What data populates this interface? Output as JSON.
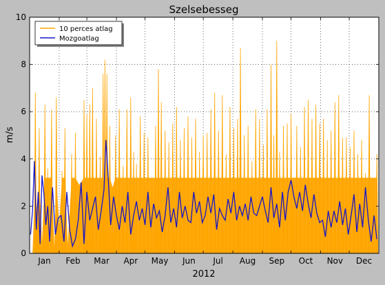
{
  "chart_data": {
    "type": "line",
    "title": "Szelsebesseg",
    "xlabel": "2012",
    "ylabel": "m/s",
    "ylim": [
      0,
      10
    ],
    "y_ticks": [
      0,
      2,
      4,
      6,
      8,
      10
    ],
    "x_ticks": [
      "Jan",
      "Feb",
      "Mar",
      "Apr",
      "May",
      "Jun",
      "Jul",
      "Aug",
      "Sep",
      "Oct",
      "Nov",
      "Dec"
    ],
    "x_range_days": [
      0,
      366
    ],
    "grid": true,
    "legend_position": "top-left",
    "series": [
      {
        "name": "10 perces atlag",
        "color": "#ffa500",
        "x": [
          3,
          6,
          8,
          10,
          13,
          16,
          19,
          23,
          26,
          28,
          31,
          34,
          37,
          40,
          44,
          48,
          52,
          57,
          60,
          63,
          66,
          70,
          74,
          77,
          79,
          81,
          84,
          87,
          90,
          94,
          98,
          102,
          106,
          109,
          112,
          116,
          120,
          124,
          128,
          132,
          135,
          138,
          142,
          146,
          150,
          154,
          158,
          162,
          166,
          170,
          174,
          178,
          182,
          186,
          190,
          194,
          198,
          202,
          206,
          210,
          214,
          218,
          221,
          225,
          229,
          233,
          237,
          241,
          245,
          249,
          253,
          256,
          259,
          262,
          266,
          270,
          274,
          277,
          280,
          284,
          288,
          292,
          296,
          300,
          304,
          308,
          312,
          316,
          320,
          324,
          328,
          332,
          336,
          340,
          344,
          348,
          352,
          356,
          360,
          364
        ],
        "values": [
          0,
          6.8,
          1.5,
          5.3,
          0.5,
          6.3,
          3.6,
          6.1,
          0.3,
          6.6,
          1.2,
          3.5,
          5.3,
          0.4,
          4.2,
          5.1,
          2.9,
          6.5,
          5.9,
          6.3,
          7.0,
          5.7,
          4.1,
          7.6,
          8.2,
          7.6,
          5.4,
          2.8,
          5.0,
          6.1,
          3.7,
          6.1,
          6.6,
          4.3,
          3.8,
          5.8,
          5.1,
          4.9,
          3.2,
          5.4,
          7.8,
          6.4,
          5.2,
          4.7,
          5.5,
          6.2,
          4.8,
          5.3,
          5.8,
          4.9,
          5.7,
          4.3,
          5.0,
          5.1,
          6.1,
          6.8,
          5.2,
          6.7,
          4.2,
          6.2,
          5.3,
          5.7,
          8.7,
          5.0,
          5.4,
          3.9,
          6.1,
          5.7,
          4.6,
          6.1,
          8.0,
          5.0,
          9.0,
          4.3,
          5.4,
          5.5,
          5.9,
          3.2,
          5.4,
          4.5,
          6.2,
          6.5,
          5.7,
          6.3,
          5.5,
          5.7,
          4.8,
          5.2,
          6.4,
          6.7,
          4.9,
          4.9,
          4.5,
          5.2,
          4.2,
          4.8,
          3.4,
          6.7,
          3.2,
          4.2
        ]
      },
      {
        "name": "Mozgoatlag",
        "color": "#1515c8",
        "x": [
          1,
          3,
          5,
          7,
          9,
          11,
          13,
          15,
          17,
          19,
          21,
          24,
          27,
          30,
          33,
          36,
          39,
          42,
          45,
          48,
          51,
          54,
          57,
          60,
          63,
          66,
          69,
          72,
          75,
          78,
          80,
          82,
          85,
          88,
          91,
          94,
          97,
          100,
          103,
          106,
          109,
          112,
          115,
          118,
          121,
          124,
          127,
          130,
          133,
          136,
          139,
          142,
          145,
          148,
          151,
          154,
          157,
          160,
          163,
          166,
          169,
          172,
          175,
          178,
          181,
          184,
          187,
          190,
          193,
          196,
          199,
          202,
          205,
          208,
          211,
          214,
          217,
          220,
          223,
          226,
          229,
          232,
          235,
          238,
          241,
          244,
          247,
          250,
          253,
          256,
          259,
          262,
          265,
          268,
          271,
          274,
          277,
          280,
          283,
          286,
          289,
          292,
          295,
          298,
          301,
          304,
          307,
          310,
          313,
          316,
          319,
          322,
          325,
          328,
          331,
          334,
          337,
          340,
          343,
          346,
          349,
          352,
          355,
          358,
          361,
          364
        ],
        "values": [
          0.8,
          1.8,
          3.9,
          1.0,
          2.6,
          0.4,
          3.3,
          2.5,
          1.2,
          2.0,
          0.5,
          2.8,
          0.8,
          1.5,
          1.6,
          0.5,
          2.6,
          1.0,
          0.3,
          0.6,
          1.4,
          3.0,
          0.4,
          2.6,
          1.4,
          1.9,
          2.4,
          1.0,
          1.8,
          2.7,
          4.8,
          3.5,
          1.2,
          2.4,
          1.6,
          1.0,
          2.0,
          1.3,
          2.6,
          0.8,
          1.6,
          2.2,
          1.4,
          1.9,
          1.2,
          2.6,
          1.1,
          2.1,
          1.5,
          1.8,
          0.9,
          1.6,
          2.8,
          1.3,
          1.9,
          1.1,
          2.6,
          1.5,
          2.0,
          1.4,
          1.3,
          2.6,
          1.7,
          2.2,
          1.3,
          1.6,
          2.4,
          1.7,
          2.5,
          1.0,
          1.9,
          1.6,
          1.4,
          2.3,
          1.7,
          2.6,
          1.4,
          2.0,
          1.6,
          2.1,
          1.4,
          2.4,
          1.7,
          1.6,
          2.0,
          2.4,
          1.8,
          1.3,
          2.8,
          1.5,
          2.1,
          1.1,
          2.6,
          1.4,
          2.6,
          3.1,
          2.4,
          1.9,
          2.6,
          1.8,
          2.9,
          2.1,
          1.5,
          2.5,
          1.7,
          1.3,
          1.4,
          0.7,
          1.8,
          1.1,
          1.8,
          1.3,
          2.2,
          1.2,
          1.9,
          0.8,
          1.6,
          2.5,
          0.9,
          2.1,
          1.1,
          2.8,
          1.4,
          0.5,
          1.6,
          0.6
        ]
      }
    ]
  }
}
